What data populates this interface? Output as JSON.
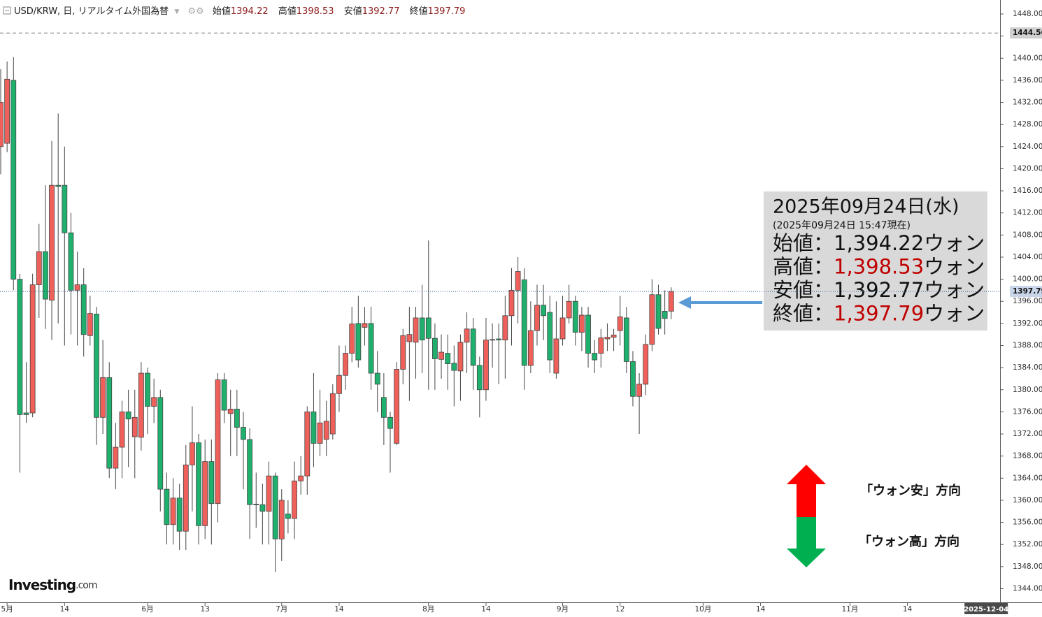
{
  "chart_data": {
    "type": "candlestick",
    "header": {
      "symbol": "USD/KRW, 日, リアルタイム外国為替",
      "labels": [
        "始値",
        "高値",
        "安値",
        "終値"
      ]
    },
    "up_color": "#f0605a",
    "down_color": "#1fb06e",
    "x": [
      0,
      1,
      2,
      3,
      4,
      5,
      6,
      7,
      8,
      9,
      10,
      11,
      12,
      13,
      14,
      15,
      16,
      17,
      18,
      19,
      20,
      21,
      22,
      23,
      24,
      25,
      26,
      27,
      28,
      29,
      30,
      31,
      32,
      33,
      34,
      35,
      36,
      37,
      38,
      39,
      40,
      41,
      42,
      43,
      44,
      45,
      46,
      47,
      48,
      49,
      50,
      51,
      52,
      53,
      54,
      55,
      56,
      57,
      58,
      59,
      60,
      61,
      62,
      63,
      64,
      65,
      66,
      67,
      68,
      69,
      70,
      71,
      72,
      73,
      74,
      75,
      76,
      77,
      78,
      79,
      80,
      81,
      82,
      83,
      84,
      85,
      86,
      87,
      88,
      89,
      90,
      91,
      92,
      93,
      94,
      95,
      96,
      97,
      98,
      99,
      100,
      101,
      102,
      103,
      104,
      105
    ],
    "open": [
      1424,
      1424.6,
      1436,
      1400,
      1375.8,
      1375.8,
      1399,
      1405,
      1396.2,
      1417,
      1417,
      1408.4,
      1398,
      1399,
      1389.8,
      1393.7,
      1375,
      1382.2,
      1365.8,
      1369.6,
      1376,
      1371.5,
      1371.4,
      1383,
      1377,
      1378.6,
      1362,
      1355.6,
      1360.4,
      1354.4,
      1366.4,
      1370.4,
      1355.4,
      1367,
      1359.4,
      1381.8,
      1375.7,
      1376.5,
      1373.2,
      1371,
      1359.3,
      1359.2,
      1358,
      1364.4,
      1353,
      1357.5,
      1356.7,
      1363.5,
      1364.4,
      1376,
      1370.3,
      1371,
      1372,
      1379.3,
      1382.6,
      1386.6,
      1392,
      1391.3,
      1392,
      1383,
      1378.6,
      1375,
      1370.3,
      1383.7,
      1388.7,
      1388.6,
      1393,
      1393,
      1389.3,
      1385.5,
      1386.6,
      1384.8,
      1383.4,
      1388.6,
      1391,
      1384.4,
      1380,
      1389,
      1389.2,
      1389,
      1393.4,
      1398,
      1399.9,
      1384.4,
      1390.7,
      1395.3,
      1394,
      1383,
      1389.2,
      1393,
      1396,
      1390.4,
      1393.5,
      1386.6,
      1386.6,
      1389.2,
      1389.5,
      1390.7,
      1393,
      1385.1,
      1378.8,
      1381,
      1388.2,
      1397.2,
      1394.2,
      1394.22
    ],
    "high": [
      1438,
      1439.4,
      1440.2,
      1401,
      1385,
      1401,
      1410,
      1417,
      1425,
      1430,
      1424,
      1412,
      1405,
      1402,
      1397,
      1395,
      1389,
      1385,
      1374,
      1378,
      1380,
      1380,
      1385,
      1384,
      1382,
      1380,
      1365,
      1364,
      1363,
      1370,
      1377,
      1372,
      1371,
      1371,
      1383,
      1383,
      1380,
      1380,
      1376,
      1373,
      1365,
      1363,
      1367,
      1365,
      1362,
      1360,
      1367,
      1368,
      1377,
      1383,
      1380,
      1378,
      1381,
      1388,
      1388,
      1395,
      1397,
      1395,
      1395,
      1387,
      1383,
      1376,
      1385,
      1391,
      1395,
      1395,
      1399,
      1407,
      1392,
      1390,
      1390,
      1388,
      1390,
      1394,
      1393,
      1386,
      1393,
      1392,
      1392,
      1397,
      1402,
      1404,
      1402,
      1396,
      1399,
      1399,
      1397,
      1396,
      1397,
      1399,
      1397,
      1395,
      1395,
      1389,
      1391,
      1392,
      1391,
      1397,
      1395,
      1387,
      1383,
      1390,
      1400,
      1399,
      1398,
      1398.53
    ],
    "low": [
      1419,
      1423,
      1398,
      1365,
      1374,
      1375,
      1393,
      1391,
      1389,
      1392,
      1388,
      1390,
      1388,
      1386,
      1388,
      1370,
      1372,
      1364,
      1362,
      1364,
      1366,
      1364,
      1369,
      1372,
      1374,
      1358,
      1352,
      1352,
      1351,
      1351,
      1358,
      1352,
      1353,
      1352,
      1356,
      1374,
      1368,
      1368,
      1362,
      1353,
      1355,
      1352,
      1352,
      1347,
      1349,
      1354,
      1353,
      1361,
      1361,
      1366,
      1368,
      1368,
      1371,
      1376,
      1380,
      1385,
      1384,
      1388,
      1380,
      1376,
      1370,
      1365,
      1370,
      1381,
      1378,
      1382,
      1383,
      1380,
      1380,
      1382,
      1380,
      1377,
      1378,
      1383,
      1380,
      1375,
      1378,
      1384,
      1381,
      1382,
      1388,
      1392,
      1380,
      1383,
      1388,
      1389,
      1383,
      1382,
      1388,
      1392,
      1388,
      1387,
      1384,
      1383,
      1384,
      1387,
      1387,
      1388,
      1383,
      1377,
      1372,
      1379,
      1387,
      1390,
      1390,
      1392.77
    ],
    "close": [
      1432,
      1436.2,
      1400,
      1375.5,
      1375.5,
      1399,
      1405,
      1396.4,
      1417,
      1416.8,
      1408.4,
      1398,
      1399,
      1390,
      1393.8,
      1375,
      1382.2,
      1365.8,
      1369.6,
      1376,
      1374.7,
      1375,
      1383,
      1377,
      1378.6,
      1362,
      1355.6,
      1360.4,
      1354.4,
      1366.4,
      1370.4,
      1355.4,
      1367,
      1359.4,
      1381.8,
      1376.3,
      1376.5,
      1373.2,
      1371,
      1359.2,
      1359.2,
      1358,
      1364.4,
      1353,
      1360,
      1356.7,
      1363.5,
      1364.4,
      1376,
      1370.3,
      1374,
      1374.3,
      1379.3,
      1382.6,
      1386.6,
      1391.9,
      1385.4,
      1392,
      1383,
      1381,
      1375,
      1373,
      1383.7,
      1389.8,
      1390,
      1393,
      1389,
      1389.3,
      1385.6,
      1386.8,
      1384.7,
      1383.5,
      1388.6,
      1391,
      1384.4,
      1380,
      1389,
      1389.1,
      1389,
      1393.4,
      1398,
      1401.4,
      1384.4,
      1390.7,
      1395.3,
      1393.4,
      1385.4,
      1389.2,
      1393,
      1396,
      1390.4,
      1393.5,
      1386.6,
      1385.4,
      1389.4,
      1389.5,
      1389.9,
      1393.2,
      1385.1,
      1378.8,
      1381,
      1388.2,
      1397.2,
      1391.1,
      1392.9,
      1397.79
    ],
    "xlim": [
      -0.11,
      156.5
    ],
    "xticks": [
      {
        "value": 1,
        "label": "5月"
      },
      {
        "value": 10,
        "label": "14"
      },
      {
        "value": 23,
        "label": "6月"
      },
      {
        "value": 32,
        "label": "13"
      },
      {
        "value": 44,
        "label": "7月"
      },
      {
        "value": 53,
        "label": "14"
      },
      {
        "value": 67,
        "label": "8月"
      },
      {
        "value": 76,
        "label": "14"
      },
      {
        "value": 88,
        "label": "9月"
      },
      {
        "value": 97,
        "label": "12"
      },
      {
        "value": 110,
        "label": "10月"
      },
      {
        "value": 119,
        "label": "14"
      },
      {
        "value": 133,
        "label": "11月"
      },
      {
        "value": 142,
        "label": "14"
      },
      {
        "value": 154,
        "label": "2025-12-04"
      }
    ],
    "ylim": [
      1341.53,
      1450.53
    ],
    "yticks": [
      {
        "value": 1344,
        "label": "1344.00"
      },
      {
        "value": 1348,
        "label": "1348.00"
      },
      {
        "value": 1352,
        "label": "1352.00"
      },
      {
        "value": 1356,
        "label": "1356.00"
      },
      {
        "value": 1360,
        "label": "1360.00"
      },
      {
        "value": 1364,
        "label": "1364.00"
      },
      {
        "value": 1368,
        "label": "1368.00"
      },
      {
        "value": 1372,
        "label": "1372.00"
      },
      {
        "value": 1376,
        "label": "1376.00"
      },
      {
        "value": 1380,
        "label": "1380.00"
      },
      {
        "value": 1384,
        "label": "1384.00"
      },
      {
        "value": 1388,
        "label": "1388.00"
      },
      {
        "value": 1392,
        "label": "1392.00"
      },
      {
        "value": 1396,
        "label": "1396.00"
      },
      {
        "value": 1400,
        "label": "1400.00"
      },
      {
        "value": 1404,
        "label": "1404.00"
      },
      {
        "value": 1408,
        "label": "1408.00"
      },
      {
        "value": 1412,
        "label": "1412.00"
      },
      {
        "value": 1416,
        "label": "1416.00"
      },
      {
        "value": 1420,
        "label": "1420.00"
      },
      {
        "value": 1424,
        "label": "1424.00"
      },
      {
        "value": 1428,
        "label": "1428.00"
      },
      {
        "value": 1432,
        "label": "1432.00"
      },
      {
        "value": 1436,
        "label": "1436.00"
      },
      {
        "value": 1440,
        "label": "1440.00"
      },
      {
        "value": 1444,
        "label": "1444.00"
      },
      {
        "value": 1448,
        "label": "1448.00"
      }
    ],
    "ref_line": 1444.56,
    "info_box": {
      "date": "2025年09月24日(水)",
      "time": "(2025年09月24日 15:47現在)",
      "rows": [
        {
          "label": "始値：",
          "value": "1,394.22",
          "unit": "ウォン",
          "color": "#111111"
        },
        {
          "label": "高値：",
          "value": "1,398.53",
          "unit": "ウォン",
          "color": "#c00000"
        },
        {
          "label": "安値：",
          "value": "1,392.77",
          "unit": "ウォン",
          "color": "#111111"
        },
        {
          "label": "終値：",
          "value": "1,397.79",
          "unit": "ウォン",
          "color": "#c00000"
        }
      ]
    },
    "direction_labels": [
      "「ウォン安」方向",
      "「ウォン高」方向"
    ],
    "source": [
      "Investing",
      ".com"
    ]
  }
}
